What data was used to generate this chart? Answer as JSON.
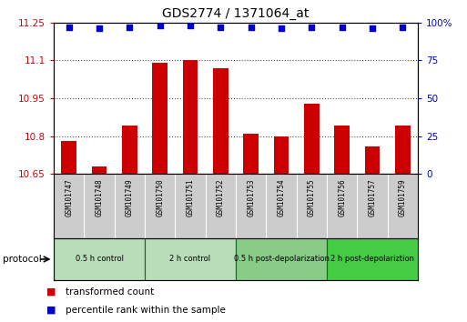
{
  "title": "GDS2774 / 1371064_at",
  "samples": [
    "GSM101747",
    "GSM101748",
    "GSM101749",
    "GSM101750",
    "GSM101751",
    "GSM101752",
    "GSM101753",
    "GSM101754",
    "GSM101755",
    "GSM101756",
    "GSM101757",
    "GSM101759"
  ],
  "bar_values": [
    10.78,
    10.68,
    10.84,
    11.09,
    11.1,
    11.07,
    10.81,
    10.8,
    10.93,
    10.84,
    10.76,
    10.84
  ],
  "percentile_values": [
    97,
    96,
    97,
    98,
    98,
    97,
    97,
    96,
    97,
    97,
    96,
    97
  ],
  "bar_color": "#cc0000",
  "dot_color": "#0000cc",
  "ylim_left": [
    10.65,
    11.25
  ],
  "ylim_right": [
    0,
    100
  ],
  "yticks_left": [
    10.65,
    10.8,
    10.95,
    11.1,
    11.25
  ],
  "yticks_right": [
    0,
    25,
    50,
    75,
    100
  ],
  "ytick_labels_left": [
    "10.65",
    "10.8",
    "10.95",
    "11.1",
    "11.25"
  ],
  "ytick_labels_right": [
    "0",
    "25",
    "50",
    "75",
    "100%"
  ],
  "bar_base": 10.65,
  "groups": [
    {
      "label": "0.5 h control",
      "start": 0,
      "end": 3,
      "color": "#b8ddb8"
    },
    {
      "label": "2 h control",
      "start": 3,
      "end": 6,
      "color": "#b8ddb8"
    },
    {
      "label": "0.5 h post-depolarization",
      "start": 6,
      "end": 9,
      "color": "#88cc88"
    },
    {
      "label": "2 h post-depolariztion",
      "start": 9,
      "end": 12,
      "color": "#44cc44"
    }
  ],
  "protocol_label": "protocol",
  "legend_red_label": "transformed count",
  "legend_blue_label": "percentile rank within the sample",
  "grid_color": "#555555",
  "background_color": "#ffffff",
  "sample_box_color": "#cccccc",
  "group_border_color": "#007700",
  "bar_width": 0.5
}
